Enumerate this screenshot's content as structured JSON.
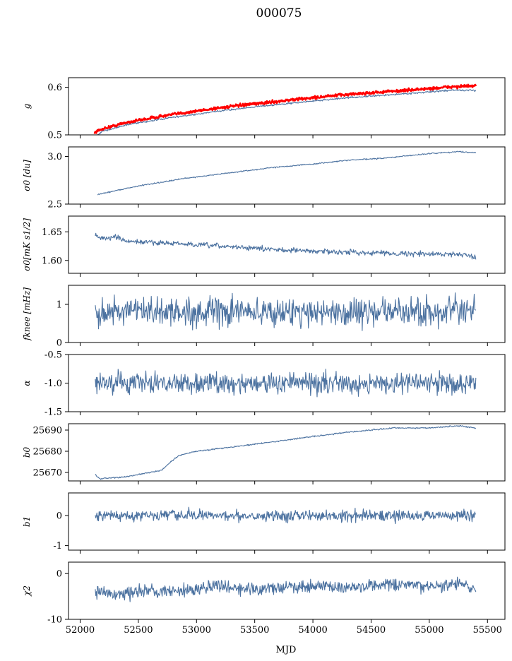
{
  "chart_data": {
    "title": "000075",
    "xlabel": "MJD",
    "xlim": [
      51900,
      55650
    ],
    "xticks": [
      52000,
      52500,
      53000,
      53500,
      54000,
      54500,
      55000,
      55500
    ],
    "panels": [
      {
        "ylabel": "g",
        "ylim": [
          0.5,
          0.62
        ],
        "yticks": [
          0.5,
          0.6
        ],
        "type": "line",
        "series": [
          {
            "color": "#ff0000",
            "kind": "thick",
            "noise": 0.0015,
            "points": [
              [
                52120,
                0.505
              ],
              [
                52200,
                0.513
              ],
              [
                52400,
                0.526
              ],
              [
                52600,
                0.535
              ],
              [
                52800,
                0.543
              ],
              [
                53000,
                0.55
              ],
              [
                53200,
                0.557
              ],
              [
                53500,
                0.565
              ],
              [
                53800,
                0.573
              ],
              [
                54000,
                0.578
              ],
              [
                54300,
                0.585
              ],
              [
                54600,
                0.59
              ],
              [
                55000,
                0.597
              ],
              [
                55200,
                0.601
              ],
              [
                55400,
                0.603
              ]
            ]
          },
          {
            "color": "#4c72a0",
            "kind": "thin",
            "noise": 0.0008,
            "points": [
              [
                52150,
                0.5
              ],
              [
                52200,
                0.508
              ],
              [
                52400,
                0.521
              ],
              [
                52600,
                0.529
              ],
              [
                52800,
                0.537
              ],
              [
                53000,
                0.543
              ],
              [
                53200,
                0.55
              ],
              [
                53500,
                0.559
              ],
              [
                53800,
                0.566
              ],
              [
                54000,
                0.571
              ],
              [
                54300,
                0.578
              ],
              [
                54600,
                0.583
              ],
              [
                55000,
                0.59
              ],
              [
                55200,
                0.594
              ],
              [
                55400,
                0.593
              ]
            ]
          }
        ]
      },
      {
        "ylabel": "σ0 [du]",
        "ylim": [
          2.5,
          3.1
        ],
        "yticks": [
          2.5,
          3.0
        ],
        "type": "line",
        "series": [
          {
            "color": "#4c72a0",
            "kind": "thin",
            "noise": 0.003,
            "points": [
              [
                52150,
                2.6
              ],
              [
                52300,
                2.64
              ],
              [
                52500,
                2.69
              ],
              [
                52700,
                2.73
              ],
              [
                52900,
                2.77
              ],
              [
                53100,
                2.8
              ],
              [
                53300,
                2.83
              ],
              [
                53500,
                2.86
              ],
              [
                53700,
                2.89
              ],
              [
                54000,
                2.92
              ],
              [
                54300,
                2.96
              ],
              [
                54600,
                2.98
              ],
              [
                55000,
                3.03
              ],
              [
                55250,
                3.05
              ],
              [
                55400,
                3.04
              ]
            ]
          }
        ]
      },
      {
        "ylabel": "σ0[mK s1/2]",
        "ylim": [
          1.5775,
          1.6775
        ],
        "yticks": [
          1.6,
          1.65
        ],
        "type": "line",
        "series": [
          {
            "color": "#4c72a0",
            "kind": "thin",
            "noise": 0.0022,
            "points": [
              [
                52130,
                1.644
              ],
              [
                52200,
                1.638
              ],
              [
                52300,
                1.641
              ],
              [
                52400,
                1.633
              ],
              [
                52700,
                1.631
              ],
              [
                53000,
                1.627
              ],
              [
                53300,
                1.624
              ],
              [
                53600,
                1.62
              ],
              [
                53900,
                1.617
              ],
              [
                54200,
                1.615
              ],
              [
                54600,
                1.613
              ],
              [
                55000,
                1.611
              ],
              [
                55300,
                1.611
              ],
              [
                55400,
                1.605
              ]
            ]
          }
        ]
      },
      {
        "ylabel": "fknee [mHz]",
        "ylim": [
          0,
          1.5
        ],
        "yticks": [
          0,
          1
        ],
        "type": "line",
        "series": [
          {
            "color": "#4c72a0",
            "kind": "thin",
            "noise": 0.18,
            "points": [
              [
                52130,
                0.8
              ],
              [
                55400,
                0.8
              ]
            ]
          }
        ]
      },
      {
        "ylabel": "α",
        "ylim": [
          -1.5,
          -0.5
        ],
        "yticks": [
          -1.5,
          -1.0,
          -0.5
        ],
        "type": "line",
        "series": [
          {
            "color": "#4c72a0",
            "kind": "thin",
            "noise": 0.09,
            "points": [
              [
                52130,
                -1.0
              ],
              [
                55400,
                -1.0
              ]
            ]
          }
        ]
      },
      {
        "ylabel": "b0",
        "ylim": [
          25666,
          25693
        ],
        "yticks": [
          25670,
          25680,
          25690
        ],
        "type": "line",
        "series": [
          {
            "color": "#4c72a0",
            "kind": "thin",
            "noise": 0.15,
            "points": [
              [
                52130,
                25669
              ],
              [
                52170,
                25667
              ],
              [
                52400,
                25668
              ],
              [
                52600,
                25670
              ],
              [
                52700,
                25671
              ],
              [
                52780,
                25675
              ],
              [
                52850,
                25678
              ],
              [
                53000,
                25680
              ],
              [
                53300,
                25682
              ],
              [
                53600,
                25684
              ],
              [
                54000,
                25687
              ],
              [
                54300,
                25689
              ],
              [
                54700,
                25691
              ],
              [
                55000,
                25691
              ],
              [
                55250,
                25692
              ],
              [
                55400,
                25691
              ]
            ]
          }
        ]
      },
      {
        "ylabel": "b1",
        "ylim": [
          -1.15,
          0.75
        ],
        "yticks": [
          -1,
          0
        ],
        "type": "line",
        "series": [
          {
            "color": "#4c72a0",
            "kind": "thin",
            "noise": 0.09,
            "points": [
              [
                52130,
                0.0
              ],
              [
                55400,
                0.0
              ]
            ]
          }
        ]
      },
      {
        "ylabel": "χ2",
        "ylim": [
          -10,
          2.5
        ],
        "yticks": [
          -10,
          0
        ],
        "type": "line",
        "series": [
          {
            "color": "#4c72a0",
            "kind": "thin",
            "noise": 0.7,
            "points": [
              [
                52130,
                -4
              ],
              [
                52300,
                -4.6
              ],
              [
                52500,
                -4.1
              ],
              [
                52800,
                -3.6
              ],
              [
                53000,
                -3.5
              ],
              [
                53200,
                -2.5
              ],
              [
                53400,
                -3.4
              ],
              [
                53700,
                -3.0
              ],
              [
                54000,
                -2.7
              ],
              [
                54300,
                -3.0
              ],
              [
                54600,
                -2.5
              ],
              [
                55000,
                -2.8
              ],
              [
                55250,
                -2.3
              ],
              [
                55400,
                -3.2
              ]
            ]
          }
        ]
      }
    ]
  }
}
